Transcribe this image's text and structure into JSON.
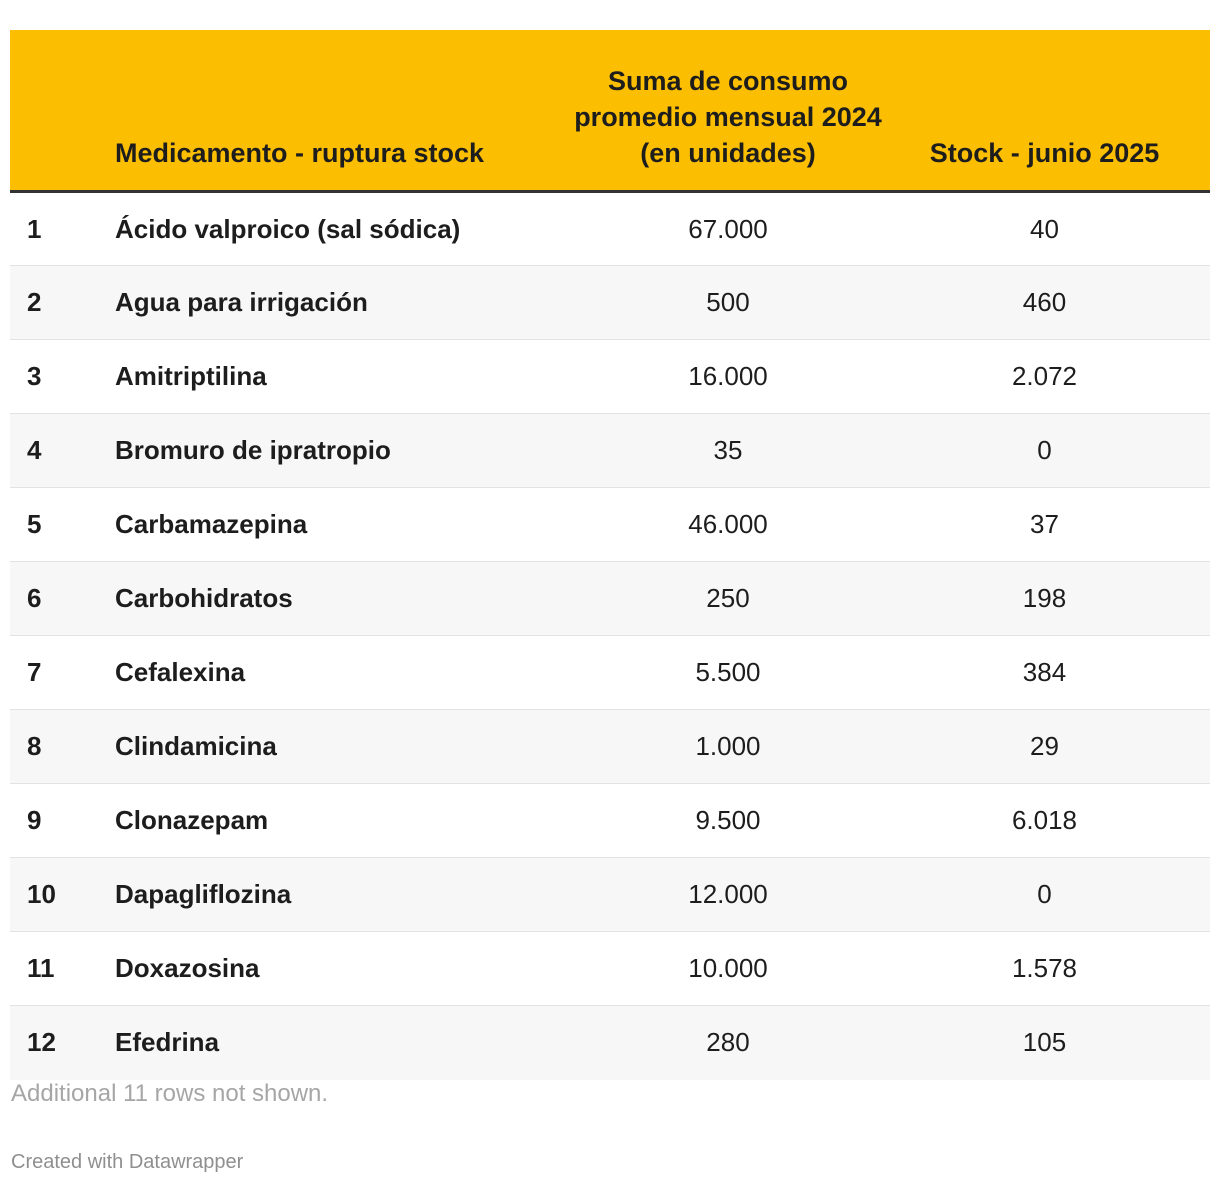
{
  "chart_data": {
    "type": "table",
    "columns": [
      "",
      "Medicamento - ruptura stock",
      "Suma de consumo promedio mensual 2024 (en unidades)",
      "Stock - junio 2025"
    ],
    "rows": [
      {
        "rank": "1",
        "name": "Ácido valproico (sal sódica)",
        "consumo": "67.000",
        "stock": "40"
      },
      {
        "rank": "2",
        "name": "Agua para irrigación",
        "consumo": "500",
        "stock": "460"
      },
      {
        "rank": "3",
        "name": "Amitriptilina",
        "consumo": "16.000",
        "stock": "2.072"
      },
      {
        "rank": "4",
        "name": "Bromuro de ipratropio",
        "consumo": "35",
        "stock": "0"
      },
      {
        "rank": "5",
        "name": "Carbamazepina",
        "consumo": "46.000",
        "stock": "37"
      },
      {
        "rank": "6",
        "name": "Carbohidratos",
        "consumo": "250",
        "stock": "198"
      },
      {
        "rank": "7",
        "name": "Cefalexina",
        "consumo": "5.500",
        "stock": "384"
      },
      {
        "rank": "8",
        "name": "Clindamicina",
        "consumo": "1.000",
        "stock": "29"
      },
      {
        "rank": "9",
        "name": "Clonazepam",
        "consumo": "9.500",
        "stock": "6.018"
      },
      {
        "rank": "10",
        "name": "Dapagliflozina",
        "consumo": "12.000",
        "stock": "0"
      },
      {
        "rank": "11",
        "name": "Doxazosina",
        "consumo": "10.000",
        "stock": "1.578"
      },
      {
        "rank": "12",
        "name": "Efedrina",
        "consumo": "280",
        "stock": "105"
      }
    ],
    "header_color": "#fbbe00"
  },
  "footer": {
    "note": "Additional 11 rows not shown.",
    "credit": "Created with Datawrapper"
  }
}
